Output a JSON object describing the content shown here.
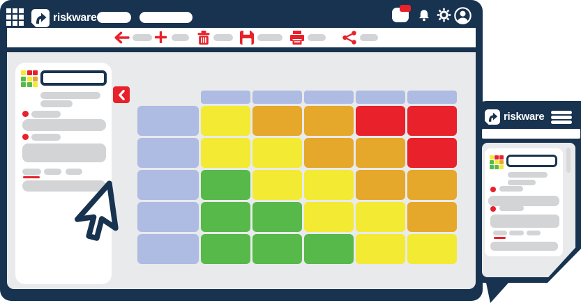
{
  "brand": {
    "product_name": "riskware"
  },
  "palette": {
    "navy": "#18334f",
    "red": "#e8212a",
    "green": "#56b94a",
    "yellow": "#f3ea33",
    "orange": "#e5a82a",
    "lavender": "#aebbe2",
    "pill_grey": "#d2d4d6",
    "content_grey": "#e9eaeb",
    "scroll_grey": "#d9d9d9"
  },
  "desktop_window": {
    "top_bar": {
      "logo_text": "riskware",
      "icons": [
        "apps-grid",
        "notifications",
        "bell",
        "settings-gear",
        "account"
      ]
    },
    "toolbar": {
      "icons": [
        "back-arrow",
        "add-plus",
        "delete-trash",
        "save-floppy",
        "print",
        "share"
      ]
    },
    "sidebar": {
      "collapse_icon": "chevron-left",
      "mini_matrix": [
        [
          "yellow",
          "red",
          "red"
        ],
        [
          "green",
          "yellow",
          "orange"
        ],
        [
          "green",
          "green",
          "yellow"
        ]
      ]
    },
    "matrix": {
      "type": "heatmap",
      "column_headers": 5,
      "row_headers": 5,
      "rows": [
        [
          "yellow",
          "orange",
          "orange",
          "red",
          "red"
        ],
        [
          "yellow",
          "yellow",
          "orange",
          "orange",
          "red"
        ],
        [
          "green",
          "yellow",
          "yellow",
          "orange",
          "orange"
        ],
        [
          "green",
          "green",
          "yellow",
          "yellow",
          "orange"
        ],
        [
          "green",
          "green",
          "green",
          "yellow",
          "yellow"
        ]
      ]
    }
  },
  "mobile_window": {
    "top_bar": {
      "logo_text": "riskware",
      "menu_icon": "hamburger"
    },
    "mini_matrix": [
      [
        "yellow",
        "red",
        "red"
      ],
      [
        "green",
        "yellow",
        "orange"
      ],
      [
        "green",
        "green",
        "yellow"
      ]
    ]
  }
}
